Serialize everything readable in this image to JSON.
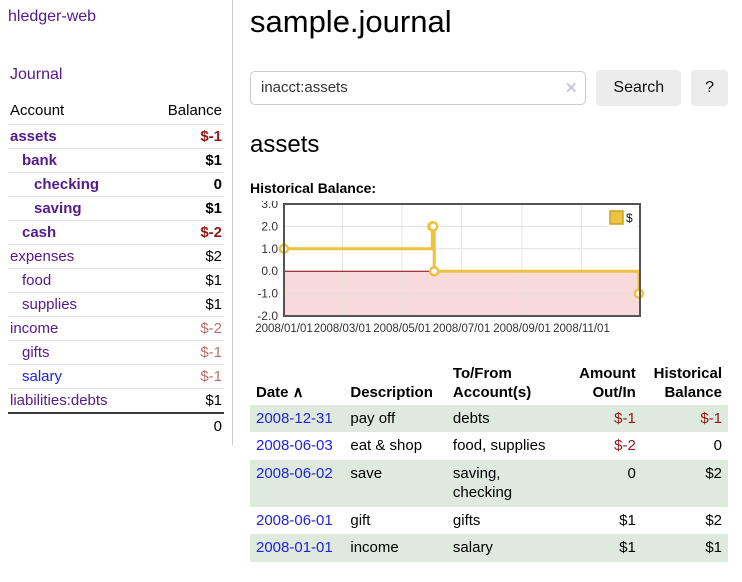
{
  "app": {
    "title": "hledger-web",
    "nav_journal": "Journal"
  },
  "colors": {
    "link_purple": "#551a8b",
    "link_blue": "#2222dd",
    "negative_strong": "#941616",
    "negative_soft": "#bf6f6b",
    "row_green": "#dfeadf",
    "chart_gold": "#edc240",
    "chart_negative_fill": "#f8dada",
    "chart_zero_line": "#8b0000"
  },
  "sidebar": {
    "headers": {
      "account": "Account",
      "balance": "Balance"
    },
    "rows": [
      {
        "account": "assets",
        "balance": "$-1",
        "indent": 0,
        "bold": true,
        "link": "purple",
        "bal": "neg-strong"
      },
      {
        "account": "bank",
        "balance": "$1",
        "indent": 1,
        "bold": true,
        "link": "purple",
        "bal": "pos"
      },
      {
        "account": "checking",
        "balance": "0",
        "indent": 2,
        "bold": true,
        "link": "purple",
        "bal": "pos"
      },
      {
        "account": "saving",
        "balance": "$1",
        "indent": 2,
        "bold": true,
        "link": "purple",
        "bal": "pos"
      },
      {
        "account": "cash",
        "balance": "$-2",
        "indent": 1,
        "bold": true,
        "link": "purple",
        "bal": "neg-strong"
      },
      {
        "account": "expenses",
        "balance": "$2",
        "indent": 0,
        "bold": false,
        "link": "purple",
        "bal": "pos"
      },
      {
        "account": "food",
        "balance": "$1",
        "indent": 1,
        "bold": false,
        "link": "purple",
        "bal": "pos"
      },
      {
        "account": "supplies",
        "balance": "$1",
        "indent": 1,
        "bold": false,
        "link": "purple",
        "bal": "pos"
      },
      {
        "account": "income",
        "balance": "$-2",
        "indent": 0,
        "bold": false,
        "link": "purple",
        "bal": "neg-soft"
      },
      {
        "account": "gifts",
        "balance": "$-1",
        "indent": 1,
        "bold": false,
        "link": "purple",
        "bal": "neg-soft"
      },
      {
        "account": "salary",
        "balance": "$-1",
        "indent": 1,
        "bold": false,
        "link": "blue",
        "bal": "neg-soft"
      },
      {
        "account": "liabilities:debts",
        "balance": "$1",
        "indent": 0,
        "bold": false,
        "link": "purple",
        "bal": "pos"
      }
    ],
    "total": "0"
  },
  "main": {
    "title": "sample.journal",
    "search": {
      "value": "inacct:assets",
      "clear_icon": "✕",
      "search_button": "Search",
      "help_button": "?"
    },
    "account_heading": "assets",
    "chart_label": "Historical Balance:"
  },
  "chart_data": {
    "type": "line",
    "title": "Historical Balance of assets",
    "step": true,
    "ylim": [
      -2,
      3
    ],
    "xlim_days": [
      0,
      365
    ],
    "y_ticks": [
      3.0,
      2.0,
      1.0,
      0.0,
      -1.0,
      -2.0
    ],
    "x_ticks": [
      {
        "label": "2008/01/01",
        "day": 0
      },
      {
        "label": "2008/03/01",
        "day": 60
      },
      {
        "label": "2008/05/01",
        "day": 121
      },
      {
        "label": "2008/07/01",
        "day": 182
      },
      {
        "label": "2008/09/01",
        "day": 244
      },
      {
        "label": "2008/11/01",
        "day": 305
      }
    ],
    "series": [
      {
        "name": "$",
        "color": "#edc240",
        "points": [
          {
            "date": "2008-01-01",
            "day": 0,
            "value": 1
          },
          {
            "date": "2008-06-01",
            "day": 152,
            "value": 2
          },
          {
            "date": "2008-06-02",
            "day": 153,
            "value": 2
          },
          {
            "date": "2008-06-03",
            "day": 154,
            "value": 0
          },
          {
            "date": "2008-12-31",
            "day": 364,
            "value": -1
          }
        ]
      }
    ],
    "legend_position": "top-right",
    "grid": true,
    "negative_region_color": "#f8dada",
    "zero_line_color": "#8b0000"
  },
  "register": {
    "headers": [
      {
        "line1": "Date",
        "line2": "",
        "align": "left",
        "sort": "∧"
      },
      {
        "line1": "Description",
        "line2": "",
        "align": "left",
        "sort": ""
      },
      {
        "line1": "To/From",
        "line2": "Account(s)",
        "align": "left",
        "sort": ""
      },
      {
        "line1": "Amount",
        "line2": "Out/In",
        "align": "right",
        "sort": ""
      },
      {
        "line1": "Historical",
        "line2": "Balance",
        "align": "right",
        "sort": ""
      }
    ],
    "rows": [
      {
        "date": "2008-12-31",
        "description": "pay off",
        "accounts": [
          "debts"
        ],
        "amount": "$-1",
        "amount_class": "neg-strong",
        "balance": "$-1",
        "balance_class": "neg-strong",
        "green": true
      },
      {
        "date": "2008-06-03",
        "description": "eat & shop",
        "accounts": [
          "food, supplies"
        ],
        "amount": "$-2",
        "amount_class": "neg-strong",
        "balance": "0",
        "balance_class": "pos",
        "green": false
      },
      {
        "date": "2008-06-02",
        "description": "save",
        "accounts": [
          "saving,",
          "checking"
        ],
        "amount": "0",
        "amount_class": "pos",
        "balance": "$2",
        "balance_class": "pos",
        "green": true
      },
      {
        "date": "2008-06-01",
        "description": "gift",
        "accounts": [
          "gifts"
        ],
        "amount": "$1",
        "amount_class": "pos",
        "balance": "$2",
        "balance_class": "pos",
        "green": false
      },
      {
        "date": "2008-01-01",
        "description": "income",
        "accounts": [
          "salary"
        ],
        "amount": "$1",
        "amount_class": "pos",
        "balance": "$1",
        "balance_class": "pos",
        "green": true
      }
    ]
  }
}
